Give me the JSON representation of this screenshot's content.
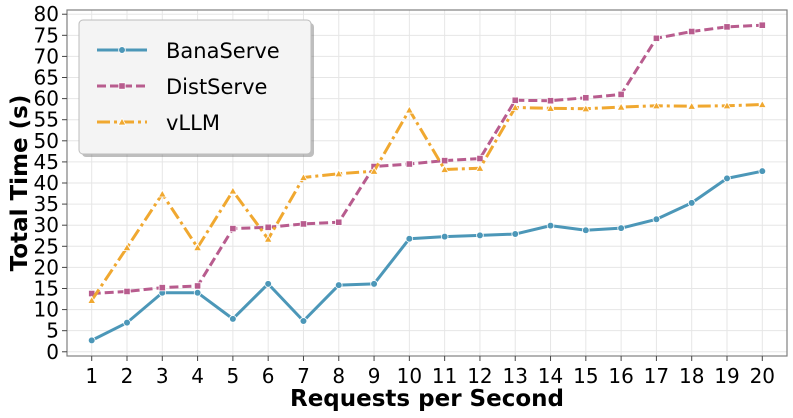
{
  "chart_data": {
    "type": "line",
    "xlabel": "Requests per Second",
    "ylabel": "Total Time (s)",
    "x": [
      1,
      2,
      3,
      4,
      5,
      6,
      7,
      8,
      9,
      10,
      11,
      12,
      13,
      14,
      15,
      16,
      17,
      18,
      19,
      20
    ],
    "xlim": [
      0.3,
      20.7
    ],
    "ylim": [
      -1,
      81
    ],
    "yticks": [
      0,
      5,
      10,
      15,
      20,
      25,
      30,
      35,
      40,
      45,
      50,
      55,
      60,
      65,
      70,
      75,
      80
    ],
    "grid": true,
    "legend_position": "top-left",
    "series": [
      {
        "name": "BanaServe",
        "color": "#4c97b8",
        "dash": "solid",
        "marker": "circle",
        "values": [
          2.7,
          6.9,
          14.0,
          14.0,
          7.8,
          16.1,
          7.3,
          15.8,
          16.1,
          26.8,
          27.3,
          27.6,
          27.9,
          29.9,
          28.8,
          29.3,
          31.4,
          35.3,
          41.1,
          42.8
        ]
      },
      {
        "name": "DistServe",
        "color": "#b85c8e",
        "dash": "dashed",
        "marker": "square",
        "values": [
          13.8,
          14.3,
          15.2,
          15.6,
          29.2,
          29.5,
          30.3,
          30.7,
          43.9,
          44.5,
          45.3,
          45.8,
          59.6,
          59.5,
          60.2,
          61.0,
          74.3,
          75.9,
          77.0,
          77.4
        ]
      },
      {
        "name": "vLLM",
        "color": "#f0a830",
        "dash": "dashdot",
        "marker": "triangle",
        "values": [
          12.2,
          24.7,
          37.4,
          24.7,
          38.1,
          26.7,
          41.3,
          42.2,
          42.8,
          57.3,
          43.2,
          43.5,
          57.9,
          57.7,
          57.6,
          58.0,
          58.3,
          58.2,
          58.3,
          58.6
        ]
      }
    ]
  }
}
